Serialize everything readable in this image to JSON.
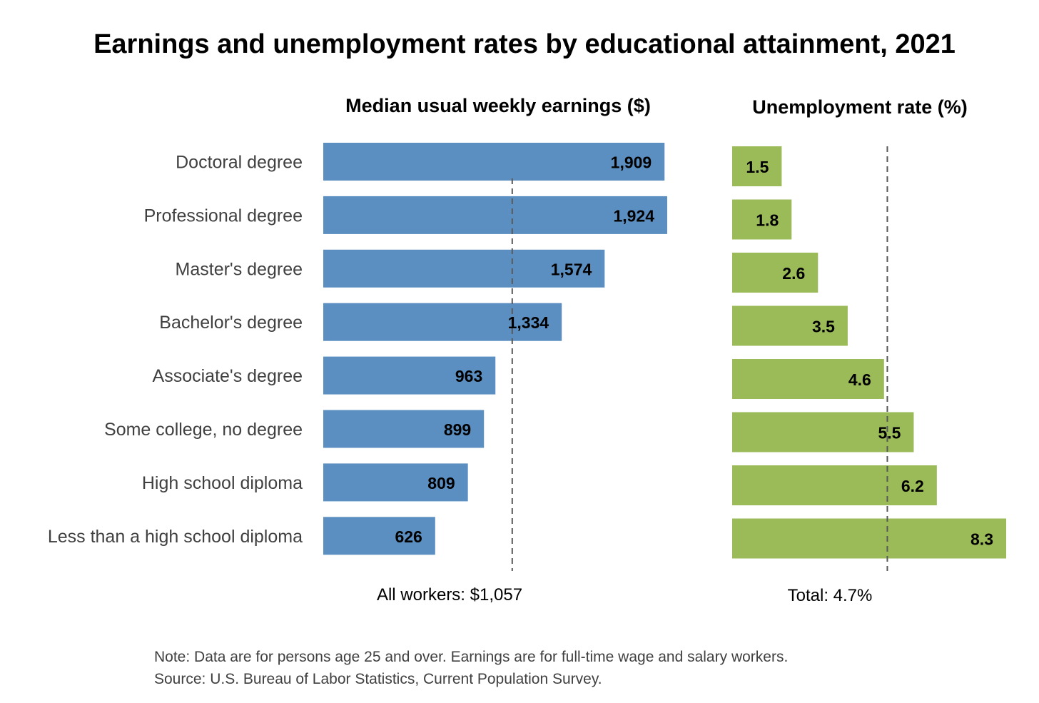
{
  "title": "Earnings and unemployment rates by educational attainment, 2021",
  "note": "Note: Data are for persons age 25 and over. Earnings are for full-time wage and salary workers.",
  "source": "Source: U.S. Bureau of Labor Statistics, Current Population Survey.",
  "colors": {
    "earnings_bar": "#5b8fc1",
    "unemployment_bar": "#9bbb59",
    "reference_line": "#595959"
  },
  "chart_data": [
    {
      "type": "bar",
      "orientation": "horizontal",
      "title": "Median usual weekly earnings ($)",
      "categories": [
        "Doctoral degree",
        "Professional degree",
        "Master's degree",
        "Bachelor's degree",
        "Associate's degree",
        "Some college, no degree",
        "High school diploma",
        "Less than a high school diploma"
      ],
      "values": [
        1909,
        1924,
        1574,
        1334,
        963,
        899,
        809,
        626
      ],
      "value_labels": [
        "1,909",
        "1,924",
        "1,574",
        "1,334",
        "963",
        "899",
        "809",
        "626"
      ],
      "reference": {
        "value": 1057,
        "label": "All workers: $1,057"
      },
      "xlim": [
        0,
        2000
      ],
      "grid": false
    },
    {
      "type": "bar",
      "orientation": "horizontal",
      "title": "Unemployment rate (%)",
      "categories": [
        "Doctoral degree",
        "Professional degree",
        "Master's degree",
        "Bachelor's degree",
        "Associate's degree",
        "Some college, no degree",
        "High school diploma",
        "Less than a high school diploma"
      ],
      "values": [
        1.5,
        1.8,
        2.6,
        3.5,
        4.6,
        5.5,
        6.2,
        8.3
      ],
      "value_labels": [
        "1.5",
        "1.8",
        "2.6",
        "3.5",
        "4.6",
        "5.5",
        "6.2",
        "8.3"
      ],
      "reference": {
        "value": 4.7,
        "label": "Total: 4.7%"
      },
      "xlim": [
        0,
        8.3
      ],
      "grid": false
    }
  ]
}
